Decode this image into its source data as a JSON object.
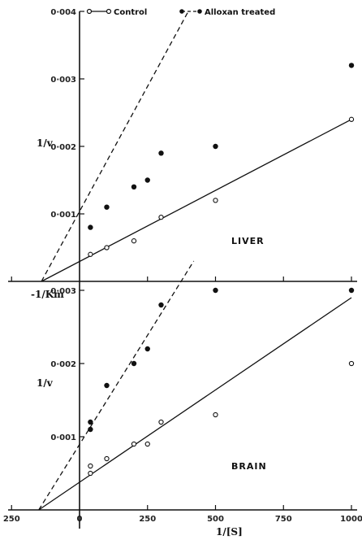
{
  "legend": {
    "control": "Control",
    "treated": "Alloxan treated"
  },
  "axes": {
    "x_label": "1/[S]",
    "y_label": "1/v",
    "km_label": "-1/Km"
  },
  "colors": {
    "ink": "#111111",
    "background": "#ffffff"
  },
  "chart_data": [
    {
      "type": "scatter",
      "panel": "LIVER",
      "ylim": [
        0,
        0.004
      ],
      "y_ticks": [
        "0.004",
        "0.003",
        "0.002",
        "0.001"
      ],
      "series": [
        {
          "name": "Control",
          "marker": "open-circle",
          "points": [
            [
              40,
              0.0004
            ],
            [
              100,
              0.0005
            ],
            [
              200,
              0.0006
            ],
            [
              300,
              0.00095
            ],
            [
              500,
              0.0012
            ],
            [
              1000,
              0.0024
            ]
          ],
          "fit_line": [
            [
              -140,
              0
            ],
            [
              1000,
              0.0024
            ]
          ],
          "line_style": "solid"
        },
        {
          "name": "Alloxan treated",
          "marker": "filled-circle",
          "points": [
            [
              40,
              0.0008
            ],
            [
              100,
              0.0011
            ],
            [
              200,
              0.0014
            ],
            [
              250,
              0.0015
            ],
            [
              300,
              0.0019
            ],
            [
              500,
              0.002
            ],
            [
              1000,
              0.0032
            ]
          ],
          "fit_line": [
            [
              -140,
              0
            ],
            [
              400,
              0.004
            ]
          ],
          "line_style": "dashed"
        }
      ]
    },
    {
      "type": "scatter",
      "panel": "BRAIN",
      "xlim": [
        -250,
        1000
      ],
      "x_ticks": [
        "250",
        "0",
        "250",
        "500",
        "750",
        "1000"
      ],
      "ylim": [
        0,
        0.003
      ],
      "y_ticks": [
        "0.003",
        "0.002",
        "0.001"
      ],
      "series": [
        {
          "name": "Control",
          "marker": "open-circle",
          "points": [
            [
              40,
              0.0005
            ],
            [
              40,
              0.0006
            ],
            [
              100,
              0.0007
            ],
            [
              200,
              0.0009
            ],
            [
              250,
              0.0009
            ],
            [
              300,
              0.0012
            ],
            [
              500,
              0.0013
            ],
            [
              1000,
              0.002
            ]
          ],
          "fit_line": [
            [
              -150,
              0
            ],
            [
              1000,
              0.0029
            ]
          ],
          "line_style": "solid"
        },
        {
          "name": "Alloxan treated",
          "marker": "filled-circle",
          "points": [
            [
              40,
              0.0011
            ],
            [
              40,
              0.0012
            ],
            [
              100,
              0.0017
            ],
            [
              200,
              0.002
            ],
            [
              250,
              0.0022
            ],
            [
              300,
              0.0028
            ],
            [
              500,
              0.003
            ],
            [
              1000,
              0.003
            ]
          ],
          "fit_line": [
            [
              -150,
              0
            ],
            [
              420,
              0.0034
            ]
          ],
          "line_style": "dashed"
        }
      ]
    }
  ]
}
